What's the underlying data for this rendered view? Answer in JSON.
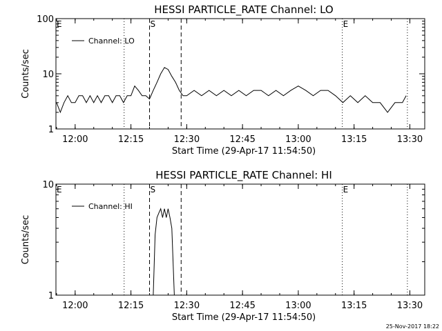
{
  "footer": {
    "stamp": "25-Nov-2017 18:22"
  },
  "chart_data": [
    {
      "type": "line",
      "title": "HESSI PARTICLE_RATE Channel: LO",
      "xlabel": "Start Time (29-Apr-17 11:54:50)",
      "ylabel": "Counts/sec",
      "y_scale": "log",
      "xlim": [
        "11:54:50",
        "13:34:00"
      ],
      "ylim": [
        1,
        100
      ],
      "x_tick_labels": [
        "12:00",
        "12:15",
        "12:30",
        "12:45",
        "13:00",
        "13:15",
        "13:30"
      ],
      "y_tick_labels": [
        "1",
        "10",
        "100"
      ],
      "legend": {
        "label": "Channel: LO",
        "placement": "top-left"
      },
      "markers": [
        {
          "label": "E",
          "time": "11:54:50",
          "style": "dotted"
        },
        {
          "label": "",
          "time": "12:13:10",
          "style": "dotted"
        },
        {
          "label": "S",
          "time": "12:20:00",
          "style": "dashed"
        },
        {
          "label": "",
          "time": "12:28:30",
          "style": "dashed"
        },
        {
          "label": "E",
          "time": "13:11:50",
          "style": "dotted"
        },
        {
          "label": "",
          "time": "13:29:20",
          "style": "dotted"
        }
      ],
      "series": [
        {
          "name": "Channel: LO",
          "x": [
            "11:55:00",
            "11:56:00",
            "11:57:00",
            "11:58:00",
            "11:59:00",
            "12:00:00",
            "12:01:00",
            "12:02:00",
            "12:03:00",
            "12:04:00",
            "12:05:00",
            "12:06:00",
            "12:07:00",
            "12:08:00",
            "12:09:00",
            "12:10:00",
            "12:11:00",
            "12:12:00",
            "12:13:00",
            "12:14:00",
            "12:15:00",
            "12:16:00",
            "12:17:00",
            "12:18:00",
            "12:19:00",
            "12:20:00",
            "12:21:00",
            "12:22:00",
            "12:23:00",
            "12:24:00",
            "12:25:00",
            "12:26:00",
            "12:27:00",
            "12:28:00",
            "12:29:00",
            "12:30:00",
            "12:32:00",
            "12:34:00",
            "12:36:00",
            "12:38:00",
            "12:40:00",
            "12:42:00",
            "12:44:00",
            "12:46:00",
            "12:48:00",
            "12:50:00",
            "12:52:00",
            "12:54:00",
            "12:56:00",
            "12:58:00",
            "13:00:00",
            "13:02:00",
            "13:04:00",
            "13:06:00",
            "13:08:00",
            "13:10:00",
            "13:12:00",
            "13:14:00",
            "13:16:00",
            "13:18:00",
            "13:20:00",
            "13:22:00",
            "13:24:00",
            "13:26:00",
            "13:28:00",
            "13:29:00"
          ],
          "y": [
            3,
            2,
            3,
            4,
            3,
            3,
            4,
            4,
            3,
            4,
            3,
            4,
            3,
            4,
            4,
            3,
            4,
            4,
            3,
            4,
            4,
            6,
            5,
            4,
            4,
            3.5,
            5,
            7,
            10,
            13,
            12,
            9,
            7,
            5,
            4,
            4,
            5,
            4,
            5,
            4,
            5,
            4,
            5,
            4,
            5,
            5,
            4,
            5,
            4,
            5,
            6,
            5,
            4,
            5,
            5,
            4,
            3,
            4,
            3,
            4,
            3,
            3,
            2,
            3,
            3,
            4
          ]
        }
      ]
    },
    {
      "type": "line",
      "title": "HESSI PARTICLE_RATE Channel: HI",
      "xlabel": "Start Time (29-Apr-17 11:54:50)",
      "ylabel": "Counts/sec",
      "y_scale": "log",
      "xlim": [
        "11:54:50",
        "13:34:00"
      ],
      "ylim": [
        1,
        10
      ],
      "x_tick_labels": [
        "12:00",
        "12:15",
        "12:30",
        "12:45",
        "13:00",
        "13:15",
        "13:30"
      ],
      "y_tick_labels": [
        "1",
        "10"
      ],
      "legend": {
        "label": "Channel: HI",
        "placement": "top-left"
      },
      "markers": [
        {
          "label": "E",
          "time": "11:54:50",
          "style": "dotted"
        },
        {
          "label": "",
          "time": "12:13:10",
          "style": "dotted"
        },
        {
          "label": "S",
          "time": "12:20:00",
          "style": "dashed"
        },
        {
          "label": "",
          "time": "12:28:30",
          "style": "dashed"
        },
        {
          "label": "E",
          "time": "13:11:50",
          "style": "dotted"
        },
        {
          "label": "",
          "time": "13:29:20",
          "style": "dotted"
        }
      ],
      "series": [
        {
          "name": "Channel: HI",
          "x": [
            "12:21:00",
            "12:21:30",
            "12:22:00",
            "12:22:30",
            "12:23:00",
            "12:23:30",
            "12:24:00",
            "12:24:30",
            "12:25:00",
            "12:25:30",
            "12:26:00",
            "12:26:20",
            "12:26:40"
          ],
          "y": [
            1,
            3.5,
            5,
            5.5,
            6,
            5,
            6,
            5,
            6,
            5,
            4,
            2,
            1
          ]
        }
      ]
    }
  ]
}
